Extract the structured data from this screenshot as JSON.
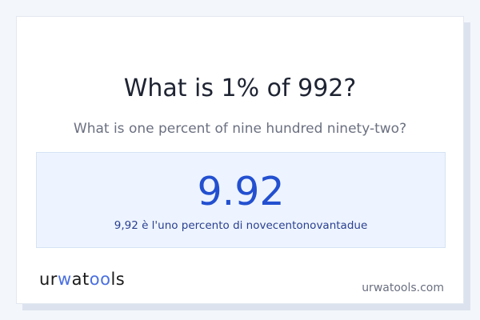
{
  "question": {
    "title": "What is 1% of 992?",
    "subtitle": "What is one percent of nine hundred ninety-two?"
  },
  "result": {
    "value": "9.92",
    "description": "9,92 è l'uno percento di novecentonovantadue"
  },
  "footer": {
    "logo": "urwatools",
    "domain": "urwatools.com"
  },
  "colors": {
    "accent": "#2350d0",
    "logo_accent": "#4a6fe0",
    "result_bg": "#edf4ff"
  }
}
